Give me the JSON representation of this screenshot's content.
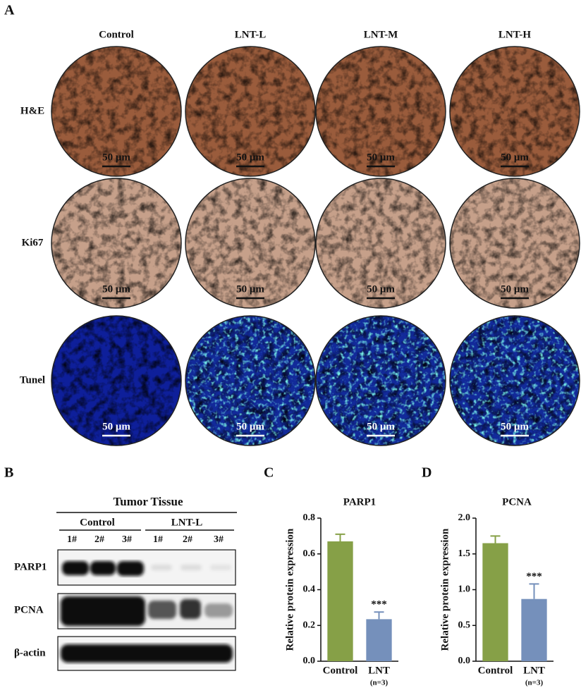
{
  "panel_labels": [
    "A",
    "B",
    "C",
    "D"
  ],
  "panel_a": {
    "columns": [
      "Control",
      "LNT-L",
      "LNT-M",
      "LNT-H"
    ],
    "rows": [
      "H&E",
      "Ki67",
      "Tunel"
    ],
    "scale_bars": [
      [
        "50 μm",
        "50 μm",
        "50 μm",
        "50 μm"
      ],
      [
        "50 μm",
        "50 μm",
        "50 μm",
        "50 μm"
      ],
      [
        "50 μm",
        "50 μm",
        "50 μm",
        "50 μm"
      ]
    ]
  },
  "panel_b": {
    "title": "Tumor Tissue",
    "groups": [
      "Control",
      "LNT-L"
    ],
    "lanes": [
      "1#",
      "2#",
      "3#",
      "1#",
      "2#",
      "3#"
    ],
    "blots": [
      "PARP1",
      "PCNA",
      "β-actin"
    ]
  },
  "chart_data": [
    {
      "type": "bar",
      "title": "PARP1",
      "ylabel": "Relative protein expression",
      "categories": [
        "Control",
        "LNT"
      ],
      "values": [
        0.67,
        0.235
      ],
      "errors": [
        0.04,
        0.04
      ],
      "colors": [
        "#86a047",
        "#7590bb"
      ],
      "significance": [
        null,
        "***"
      ],
      "sample_size": "(n=3)",
      "ylim": [
        0,
        0.8
      ],
      "yticks": [
        {
          "value": 0,
          "label": "0.0"
        },
        0.2,
        0.4,
        0.6,
        0.8
      ]
    },
    {
      "type": "bar",
      "title": "PCNA",
      "ylabel": "Relative protein expression",
      "categories": [
        "Control",
        "LNT"
      ],
      "values": [
        1.65,
        0.87
      ],
      "errors": [
        0.1,
        0.21
      ],
      "colors": [
        "#86a047",
        "#7590bb"
      ],
      "significance": [
        null,
        "***"
      ],
      "sample_size": "(n=3)",
      "ylim": [
        0,
        2
      ],
      "yticks": [
        {
          "value": 0,
          "label": "0.0"
        },
        0.5,
        {
          "value": 1,
          "label": "1.0"
        },
        1.5,
        {
          "value": 2,
          "label": "2.0"
        }
      ]
    }
  ]
}
